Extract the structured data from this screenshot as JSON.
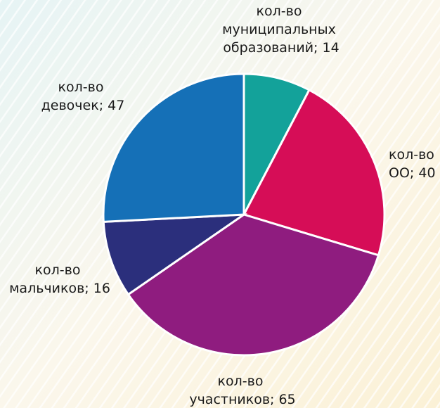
{
  "chart_data": {
    "type": "pie",
    "values": [
      14,
      40,
      65,
      16,
      47
    ],
    "value_labels": [
      "кол-во муниципальных образований; 14",
      "кол-во ОО; 40",
      "кол-во участников; 65",
      "кол-во мальчиков; 16",
      "кол-во девочек; 47"
    ],
    "colors": [
      "#13a29a",
      "#d60d57",
      "#8f1c7f",
      "#2b2f7c",
      "#1570b7"
    ]
  }
}
